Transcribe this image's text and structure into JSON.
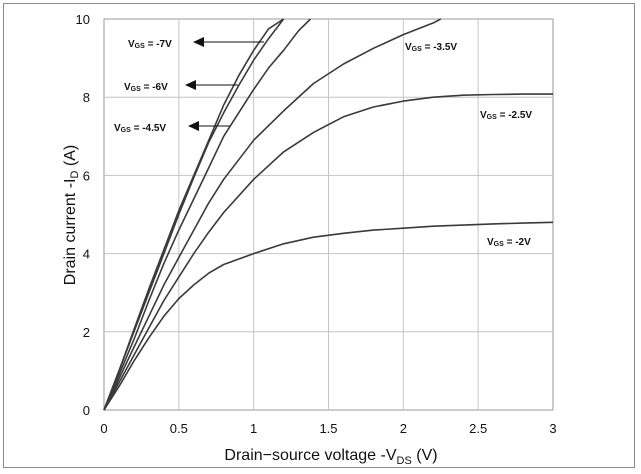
{
  "chart_data": {
    "type": "line",
    "xlabel_parts": [
      "Drain−source voltage -V",
      "DS",
      " (V)"
    ],
    "ylabel_parts": [
      "Drain current -I",
      "D",
      " (A)"
    ],
    "xlim": [
      0,
      3
    ],
    "ylim": [
      0,
      10
    ],
    "xticks": [
      "0",
      "0.5",
      "1",
      "1.5",
      "2",
      "2.5",
      "3"
    ],
    "yticks": [
      "0",
      "2",
      "4",
      "6",
      "8",
      "10"
    ],
    "grid": true,
    "series": [
      {
        "name": "VGS = -7V",
        "label_parts": [
          "V",
          "GS",
          " = -7V"
        ],
        "points": [
          [
            0,
            0
          ],
          [
            0.1,
            1.0
          ],
          [
            0.2,
            2.05
          ],
          [
            0.3,
            3.1
          ],
          [
            0.4,
            4.1
          ],
          [
            0.5,
            5.1
          ],
          [
            0.6,
            6.0
          ],
          [
            0.7,
            6.9
          ],
          [
            0.8,
            7.8
          ],
          [
            0.9,
            8.55
          ],
          [
            1.0,
            9.2
          ],
          [
            1.1,
            9.75
          ],
          [
            1.2,
            10.1
          ]
        ]
      },
      {
        "name": "VGS = -6V",
        "label_parts": [
          "V",
          "GS",
          " = -6V"
        ],
        "points": [
          [
            0,
            0
          ],
          [
            0.1,
            1.0
          ],
          [
            0.2,
            2.0
          ],
          [
            0.3,
            3.0
          ],
          [
            0.4,
            4.0
          ],
          [
            0.5,
            5.0
          ],
          [
            0.6,
            5.95
          ],
          [
            0.7,
            6.85
          ],
          [
            0.8,
            7.6
          ],
          [
            0.9,
            8.3
          ],
          [
            1.0,
            8.95
          ],
          [
            1.1,
            9.5
          ],
          [
            1.2,
            10.05
          ]
        ]
      },
      {
        "name": "VGS = -4.5V",
        "label_parts": [
          "V",
          "GS",
          " = -4.5V"
        ],
        "points": [
          [
            0,
            0
          ],
          [
            0.1,
            0.9
          ],
          [
            0.2,
            1.8
          ],
          [
            0.3,
            2.8
          ],
          [
            0.4,
            3.75
          ],
          [
            0.5,
            4.6
          ],
          [
            0.6,
            5.4
          ],
          [
            0.7,
            6.2
          ],
          [
            0.8,
            7.0
          ],
          [
            0.9,
            7.6
          ],
          [
            1.0,
            8.2
          ],
          [
            1.1,
            8.75
          ],
          [
            1.2,
            9.2
          ],
          [
            1.3,
            9.7
          ],
          [
            1.38,
            10.05
          ]
        ]
      },
      {
        "name": "VGS = -3.5V",
        "label_parts": [
          "V",
          "GS",
          " = -3.5V"
        ],
        "points": [
          [
            0,
            0
          ],
          [
            0.1,
            0.8
          ],
          [
            0.2,
            1.6
          ],
          [
            0.3,
            2.4
          ],
          [
            0.4,
            3.2
          ],
          [
            0.5,
            3.9
          ],
          [
            0.6,
            4.6
          ],
          [
            0.7,
            5.3
          ],
          [
            0.8,
            5.9
          ],
          [
            1.0,
            6.9
          ],
          [
            1.2,
            7.65
          ],
          [
            1.4,
            8.35
          ],
          [
            1.6,
            8.85
          ],
          [
            1.8,
            9.25
          ],
          [
            2.0,
            9.6
          ],
          [
            2.2,
            9.9
          ],
          [
            2.25,
            10.0
          ]
        ]
      },
      {
        "name": "VGS = -2.5V",
        "label_parts": [
          "V",
          "GS",
          " = -2.5V"
        ],
        "points": [
          [
            0,
            0
          ],
          [
            0.1,
            0.7
          ],
          [
            0.2,
            1.4
          ],
          [
            0.3,
            2.1
          ],
          [
            0.4,
            2.8
          ],
          [
            0.5,
            3.4
          ],
          [
            0.6,
            4.0
          ],
          [
            0.7,
            4.55
          ],
          [
            0.8,
            5.05
          ],
          [
            1.0,
            5.9
          ],
          [
            1.2,
            6.6
          ],
          [
            1.4,
            7.1
          ],
          [
            1.6,
            7.5
          ],
          [
            1.8,
            7.75
          ],
          [
            2.0,
            7.9
          ],
          [
            2.2,
            8.0
          ],
          [
            2.4,
            8.05
          ],
          [
            2.6,
            8.07
          ],
          [
            2.8,
            8.08
          ],
          [
            3.0,
            8.08
          ]
        ]
      },
      {
        "name": "VGS = -2V",
        "label_parts": [
          "V",
          "GS",
          " = -2V"
        ],
        "points": [
          [
            0,
            0
          ],
          [
            0.1,
            0.6
          ],
          [
            0.2,
            1.25
          ],
          [
            0.3,
            1.85
          ],
          [
            0.4,
            2.4
          ],
          [
            0.5,
            2.85
          ],
          [
            0.6,
            3.2
          ],
          [
            0.7,
            3.5
          ],
          [
            0.8,
            3.72
          ],
          [
            1.0,
            4.0
          ],
          [
            1.2,
            4.25
          ],
          [
            1.4,
            4.42
          ],
          [
            1.6,
            4.52
          ],
          [
            1.8,
            4.6
          ],
          [
            2.0,
            4.65
          ],
          [
            2.2,
            4.7
          ],
          [
            2.4,
            4.73
          ],
          [
            2.6,
            4.76
          ],
          [
            2.8,
            4.78
          ],
          [
            3.0,
            4.8
          ]
        ]
      }
    ]
  }
}
